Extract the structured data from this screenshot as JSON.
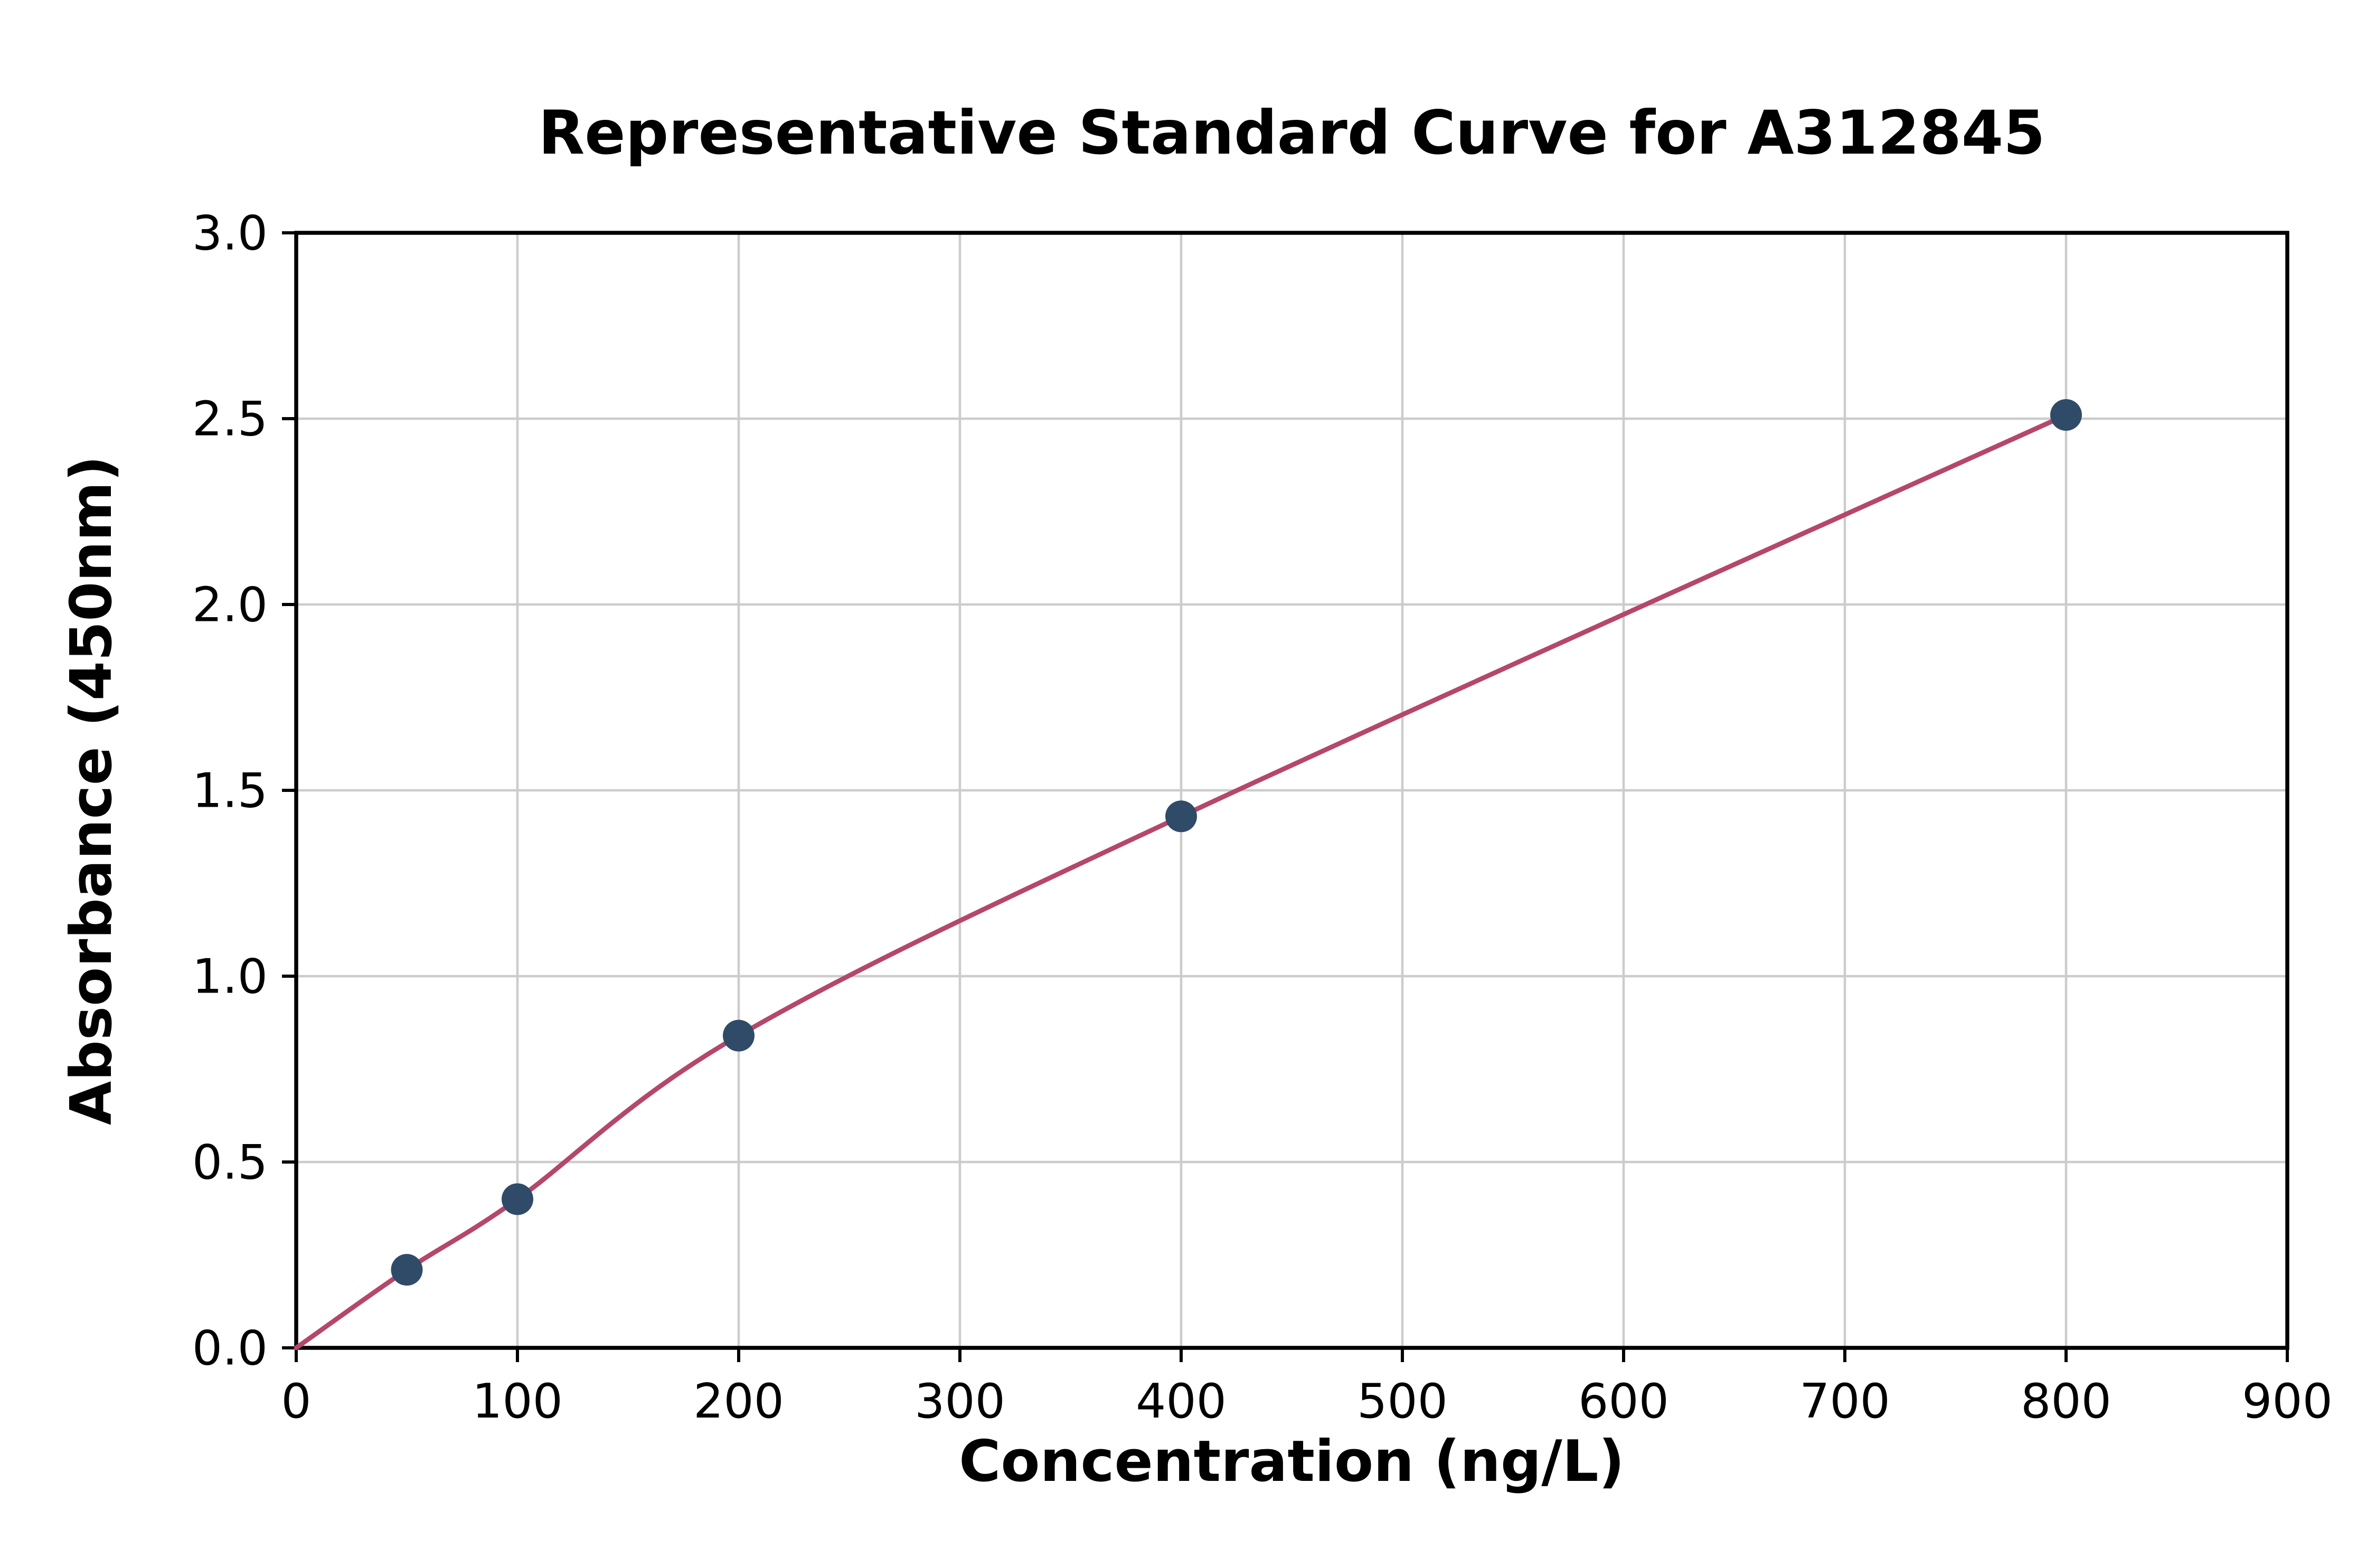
{
  "chart_data": {
    "type": "scatter",
    "title": "Representative Standard Curve for A312845",
    "xlabel": "Concentration (ng/L)",
    "ylabel": "Absorbance (450nm)",
    "xlim": [
      0,
      900
    ],
    "ylim": [
      0.0,
      3.0
    ],
    "x_tick_values": [
      0,
      100,
      200,
      300,
      400,
      500,
      600,
      700,
      800,
      900
    ],
    "x_tick_labels": [
      "0",
      "100",
      "200",
      "300",
      "400",
      "500",
      "600",
      "700",
      "800",
      "900"
    ],
    "y_tick_values": [
      0.0,
      0.5,
      1.0,
      1.5,
      2.0,
      2.5,
      3.0
    ],
    "y_tick_labels": [
      "0.0",
      "0.5",
      "1.0",
      "1.5",
      "2.0",
      "2.5",
      "3.0"
    ],
    "grid": true,
    "legend": "none",
    "points": {
      "x": [
        50,
        100,
        200,
        400,
        800
      ],
      "y": [
        0.21,
        0.4,
        0.84,
        1.43,
        2.51
      ]
    },
    "fit_curve_start": [
      0,
      0.0
    ],
    "colors": {
      "point": "#2f4b68",
      "line": "#b5476b",
      "grid": "#cccccc",
      "spine": "#000000",
      "background": "#ffffff"
    }
  }
}
